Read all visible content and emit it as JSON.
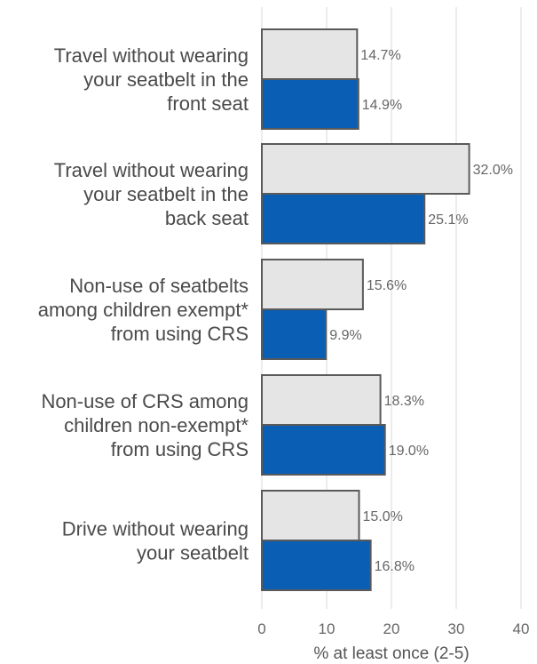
{
  "chart_data": {
    "type": "bar",
    "orientation": "horizontal",
    "categories": [
      [
        "Travel without wearing",
        "your seatbelt in the",
        "front seat"
      ],
      [
        "Travel without wearing",
        "your seatbelt in the",
        "back seat"
      ],
      [
        "Non-use of seatbelts",
        "among children exempt*",
        "from using CRS"
      ],
      [
        "Non-use of CRS among",
        "children non-exempt*",
        "from using CRS"
      ],
      [
        "Drive without wearing",
        "your seatbelt"
      ]
    ],
    "series": [
      {
        "values": [
          14.7,
          32.0,
          15.6,
          18.3,
          15.0
        ],
        "labels": [
          "14.7%",
          "32.0%",
          "15.6%",
          "18.3%",
          "15.0%"
        ],
        "color": "#e5e5e5"
      },
      {
        "values": [
          14.9,
          25.1,
          9.9,
          19.0,
          16.8
        ],
        "labels": [
          "14.9%",
          "25.1%",
          "9.9%",
          "19.0%",
          "16.8%"
        ],
        "color": "#0a5fb4"
      }
    ],
    "xlabel": "% at least once (2-5)",
    "xlim": [
      0,
      40
    ],
    "xticks": [
      "0",
      "10",
      "20",
      "30",
      "40"
    ],
    "grid": true,
    "bar_outline": "#5a5a5a",
    "grid_color": "#d9d9d9"
  }
}
